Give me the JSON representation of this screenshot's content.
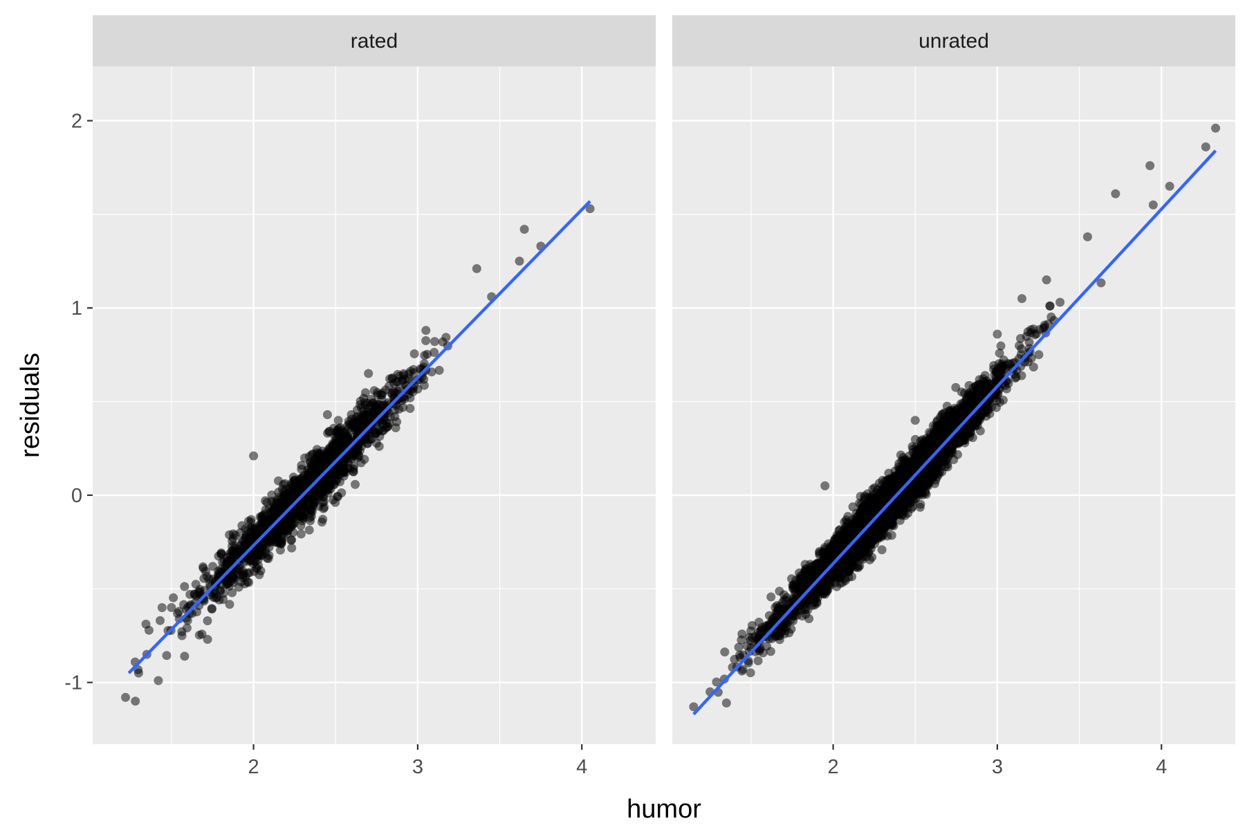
{
  "chart_data": {
    "type": "scatter",
    "facet_by": "rating",
    "xlabel": "humor",
    "ylabel": "residuals",
    "xlim": [
      1.02,
      4.45
    ],
    "ylim": [
      -1.33,
      2.29
    ],
    "x_ticks": [
      2,
      3,
      4
    ],
    "y_ticks": [
      -1,
      0,
      1,
      2
    ],
    "x_tick_labels": [
      "2",
      "3",
      "4"
    ],
    "y_tick_labels": [
      "-1",
      "0",
      "1",
      "2"
    ],
    "grid": true,
    "legend": "none",
    "colors": {
      "panel_bg": "#EBEBEB",
      "strip_bg": "#D9D9D9",
      "grid": "#FFFFFF",
      "points": "#000000",
      "fit_line": "#3366FF"
    },
    "panels": [
      {
        "label": "rated",
        "fit": {
          "x": [
            1.24,
            4.05
          ],
          "y": [
            -0.95,
            1.57
          ]
        },
        "cloud": {
          "x_range": [
            1.24,
            4.05
          ],
          "slope": 0.897,
          "intercept": -2.06,
          "sd": 0.075,
          "n": 1500,
          "mean": 2.33,
          "spread": 0.33
        },
        "points": [
          [
            1.22,
            -1.08
          ],
          [
            1.28,
            -1.1
          ],
          [
            1.3,
            -0.95
          ],
          [
            1.42,
            -0.99
          ],
          [
            1.35,
            -0.85
          ],
          [
            1.58,
            -0.86
          ],
          [
            1.72,
            -0.77
          ],
          [
            3.65,
            1.42
          ],
          [
            4.05,
            1.53
          ],
          [
            3.36,
            1.21
          ],
          [
            3.05,
            0.88
          ],
          [
            3.62,
            1.25
          ],
          [
            2.0,
            0.21
          ],
          [
            2.45,
            0.43
          ],
          [
            2.7,
            0.65
          ],
          [
            1.5,
            -0.6
          ],
          [
            3.75,
            1.33
          ],
          [
            3.45,
            1.06
          ]
        ]
      },
      {
        "label": "unrated",
        "fit": {
          "x": [
            1.15,
            4.33
          ],
          "y": [
            -1.17,
            1.84
          ]
        },
        "cloud": {
          "x_range": [
            1.15,
            4.33
          ],
          "slope": 0.947,
          "intercept": -2.26,
          "sd": 0.06,
          "n": 4500,
          "mean": 2.35,
          "spread": 0.32
        },
        "points": [
          [
            1.15,
            -1.13
          ],
          [
            1.25,
            -1.05
          ],
          [
            1.35,
            -1.11
          ],
          [
            1.45,
            -0.93
          ],
          [
            4.33,
            1.96
          ],
          [
            3.93,
            1.76
          ],
          [
            3.72,
            1.61
          ],
          [
            4.27,
            1.86
          ],
          [
            4.05,
            1.65
          ],
          [
            3.55,
            1.38
          ],
          [
            3.15,
            1.05
          ],
          [
            3.0,
            0.86
          ],
          [
            1.95,
            0.05
          ],
          [
            2.5,
            0.4
          ],
          [
            3.95,
            1.55
          ],
          [
            3.3,
            1.15
          ]
        ]
      }
    ]
  }
}
